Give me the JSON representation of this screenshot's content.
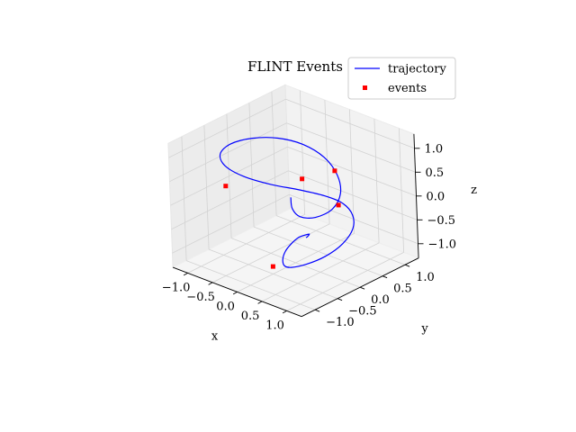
{
  "chart_data": {
    "type": "line",
    "projection": "3d",
    "title": "FLINT Events",
    "xlabel": "x",
    "ylabel": "y",
    "zlabel": "z",
    "x_ticks": [
      "−1.0",
      "−0.5",
      "0.0",
      "0.5",
      "1.0"
    ],
    "y_ticks": [
      "−1.0",
      "−0.5",
      "0.0",
      "0.5",
      "1.0"
    ],
    "z_ticks": [
      "−1.0",
      "−0.5",
      "0.0",
      "0.5",
      "1.0"
    ],
    "xlim": [
      -1.3,
      1.3
    ],
    "ylim": [
      -1.3,
      1.3
    ],
    "zlim": [
      -1.3,
      1.3
    ],
    "grid": true,
    "legend_position": "top-right",
    "series": [
      {
        "name": "trajectory",
        "kind": "line",
        "color": "#0000ff",
        "points": [
          [
            0.25,
            -0.32,
            0.32
          ],
          [
            0.46,
            -0.52,
            0.26
          ],
          [
            0.69,
            -0.6,
            0.22
          ],
          [
            0.88,
            -0.47,
            0.22
          ],
          [
            0.95,
            -0.17,
            0.28
          ],
          [
            0.83,
            0.15,
            0.41
          ],
          [
            0.58,
            0.36,
            0.6
          ],
          [
            0.26,
            0.43,
            0.81
          ],
          [
            -0.09,
            0.35,
            0.98
          ],
          [
            -0.42,
            0.16,
            1.07
          ],
          [
            -0.71,
            -0.09,
            1.07
          ],
          [
            -0.95,
            -0.31,
            0.96
          ],
          [
            -1.05,
            -0.44,
            0.77
          ],
          [
            -0.97,
            -0.43,
            0.55
          ],
          [
            -0.74,
            -0.28,
            0.35
          ],
          [
            -0.43,
            -0.02,
            0.18
          ],
          [
            -0.11,
            0.26,
            0.06
          ],
          [
            0.2,
            0.47,
            -0.04
          ],
          [
            0.49,
            0.55,
            -0.12
          ],
          [
            0.76,
            0.47,
            -0.22
          ],
          [
            0.97,
            0.24,
            -0.32
          ],
          [
            1.05,
            -0.08,
            -0.45
          ],
          [
            0.95,
            -0.36,
            -0.62
          ],
          [
            0.69,
            -0.51,
            -0.82
          ],
          [
            0.37,
            -0.49,
            -1.02
          ],
          [
            0.08,
            -0.33,
            -1.18
          ],
          [
            -0.17,
            -0.1,
            -1.26
          ],
          [
            -0.33,
            0.13,
            -1.26
          ],
          [
            -0.34,
            0.28,
            -1.17
          ],
          [
            -0.21,
            0.31,
            -1.0
          ],
          [
            0.01,
            0.23,
            -0.82
          ],
          [
            0.22,
            0.08,
            -0.65
          ],
          [
            0.39,
            -0.1,
            -0.51
          ],
          [
            0.52,
            -0.26,
            -0.41
          ],
          [
            0.62,
            -0.39,
            -0.33
          ],
          [
            0.7,
            -0.5,
            -0.26
          ]
        ]
      },
      {
        "name": "events",
        "kind": "marker",
        "color": "#ff0000",
        "points": [
          [
            0.4,
            0.5,
            0.55
          ],
          [
            0.1,
            0.1,
            0.45
          ],
          [
            -1.0,
            -0.4,
            0.1
          ],
          [
            0.45,
            0.5,
            -0.15
          ],
          [
            0.05,
            -0.55,
            -1.1
          ]
        ]
      }
    ]
  }
}
